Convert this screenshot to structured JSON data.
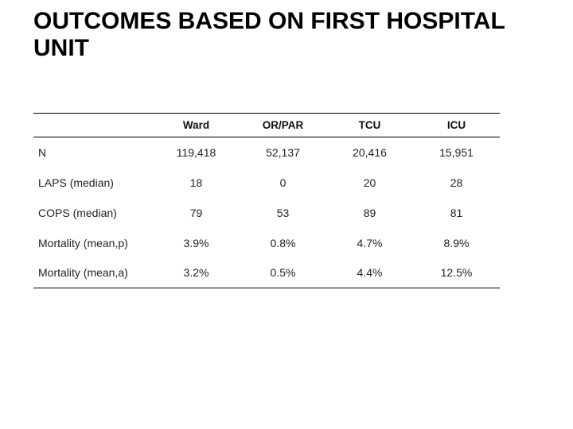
{
  "slide": {
    "title": "OUTCOMES BASED ON FIRST HOSPITAL UNIT",
    "background_color": "#ffffff",
    "title_color": "#000000",
    "rule_color": "#000000"
  },
  "table": {
    "columns": [
      "Ward",
      "OR/PAR",
      "TCU",
      "ICU"
    ],
    "rows": [
      {
        "label": "N",
        "values": [
          "119,418",
          "52,137",
          "20,416",
          "15,951"
        ]
      },
      {
        "label": "LAPS (median)",
        "values": [
          "18",
          "0",
          "20",
          "28"
        ]
      },
      {
        "label": "COPS (median)",
        "values": [
          "79",
          "53",
          "89",
          "81"
        ]
      },
      {
        "label": "Mortality (mean,p)",
        "values": [
          "3.9%",
          "0.8%",
          "4.7%",
          "8.9%"
        ]
      },
      {
        "label": "Mortality (mean,a)",
        "values": [
          "3.2%",
          "0.5%",
          "4.4%",
          "12.5%"
        ]
      }
    ]
  }
}
